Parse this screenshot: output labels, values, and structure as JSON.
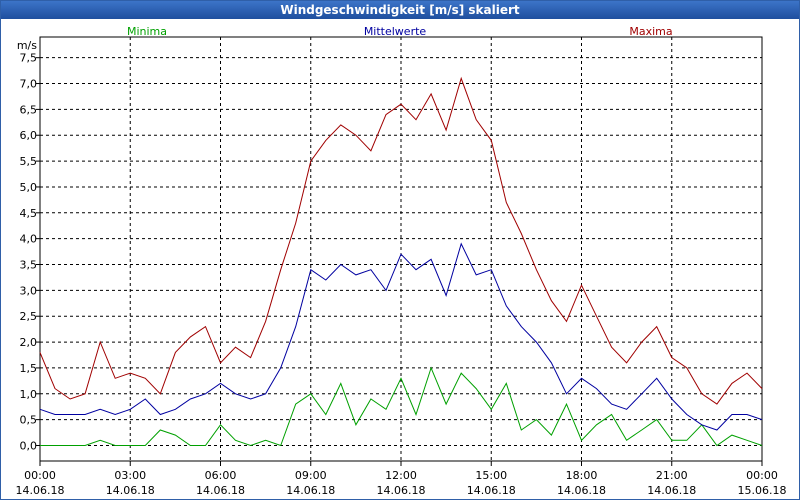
{
  "window": {
    "title": "Windgeschwindigkeit [m/s] skaliert"
  },
  "chart_data": {
    "type": "line",
    "title": "Windgeschwindigkeit [m/s] skaliert",
    "ylabel": "m/s",
    "xlabel": "",
    "ylim": [
      -0.3,
      7.9
    ],
    "xlim": [
      0,
      24
    ],
    "grid": true,
    "legend_position": "top",
    "y_ticks": [
      "0,0",
      "0,5",
      "1,0",
      "1,5",
      "2,0",
      "2,5",
      "3,0",
      "3,5",
      "4,0",
      "4,5",
      "5,0",
      "5,5",
      "6,0",
      "6,5",
      "7,0",
      "7,5"
    ],
    "x_ticks": [
      {
        "time": "00:00",
        "date": "14.06.18"
      },
      {
        "time": "03:00",
        "date": "14.06.18"
      },
      {
        "time": "06:00",
        "date": "14.06.18"
      },
      {
        "time": "09:00",
        "date": "14.06.18"
      },
      {
        "time": "12:00",
        "date": "14.06.18"
      },
      {
        "time": "15:00",
        "date": "14.06.18"
      },
      {
        "time": "18:00",
        "date": "14.06.18"
      },
      {
        "time": "21:00",
        "date": "14.06.18"
      },
      {
        "time": "00:00",
        "date": "15.06.18"
      }
    ],
    "series": [
      {
        "name": "Minima",
        "color": "#00a000",
        "x": [
          0,
          0.5,
          1,
          1.5,
          2,
          2.5,
          3,
          3.5,
          4,
          4.5,
          5,
          5.5,
          6,
          6.5,
          7,
          7.5,
          8,
          8.5,
          9,
          9.5,
          10,
          10.5,
          11,
          11.5,
          12,
          12.5,
          13,
          13.5,
          14,
          14.5,
          15,
          15.5,
          16,
          16.5,
          17,
          17.5,
          18,
          18.5,
          19,
          19.5,
          20,
          20.5,
          21,
          21.5,
          22,
          22.5,
          23,
          23.5,
          24
        ],
        "values": [
          0,
          0,
          0,
          0,
          0.1,
          0,
          0,
          0,
          0.3,
          0.2,
          0,
          0,
          0.4,
          0.1,
          0,
          0.1,
          0,
          0.8,
          1.0,
          0.6,
          1.2,
          0.4,
          0.9,
          0.7,
          1.3,
          0.6,
          1.5,
          0.8,
          1.4,
          1.1,
          0.7,
          1.2,
          0.3,
          0.5,
          0.2,
          0.8,
          0.1,
          0.4,
          0.6,
          0.1,
          0.3,
          0.5,
          0.1,
          0.1,
          0.4,
          0,
          0.2,
          0.1,
          0
        ]
      },
      {
        "name": "Mittelwerte",
        "color": "#0000a0",
        "x": [
          0,
          0.5,
          1,
          1.5,
          2,
          2.5,
          3,
          3.5,
          4,
          4.5,
          5,
          5.5,
          6,
          6.5,
          7,
          7.5,
          8,
          8.5,
          9,
          9.5,
          10,
          10.5,
          11,
          11.5,
          12,
          12.5,
          13,
          13.5,
          14,
          14.5,
          15,
          15.5,
          16,
          16.5,
          17,
          17.5,
          18,
          18.5,
          19,
          19.5,
          20,
          20.5,
          21,
          21.5,
          22,
          22.5,
          23,
          23.5,
          24
        ],
        "values": [
          0.7,
          0.6,
          0.6,
          0.6,
          0.7,
          0.6,
          0.7,
          0.9,
          0.6,
          0.7,
          0.9,
          1.0,
          1.2,
          1.0,
          0.9,
          1.0,
          1.5,
          2.3,
          3.4,
          3.2,
          3.5,
          3.3,
          3.4,
          3.0,
          3.7,
          3.4,
          3.6,
          2.9,
          3.9,
          3.3,
          3.4,
          2.7,
          2.3,
          2.0,
          1.6,
          1.0,
          1.3,
          1.1,
          0.8,
          0.7,
          1.0,
          1.3,
          0.9,
          0.6,
          0.4,
          0.3,
          0.6,
          0.6,
          0.5
        ]
      },
      {
        "name": "Maxima",
        "color": "#a00000",
        "x": [
          0,
          0.5,
          1,
          1.5,
          2,
          2.5,
          3,
          3.5,
          4,
          4.5,
          5,
          5.5,
          6,
          6.5,
          7,
          7.5,
          8,
          8.5,
          9,
          9.5,
          10,
          10.5,
          11,
          11.5,
          12,
          12.5,
          13,
          13.5,
          14,
          14.5,
          15,
          15.5,
          16,
          16.5,
          17,
          17.5,
          18,
          18.5,
          19,
          19.5,
          20,
          20.5,
          21,
          21.5,
          22,
          22.5,
          23,
          23.5,
          24
        ],
        "values": [
          1.8,
          1.1,
          0.9,
          1.0,
          2.0,
          1.3,
          1.4,
          1.3,
          1.0,
          1.8,
          2.1,
          2.3,
          1.6,
          1.9,
          1.7,
          2.4,
          3.4,
          4.3,
          5.5,
          5.9,
          6.2,
          6.0,
          5.7,
          6.4,
          6.6,
          6.3,
          6.8,
          6.1,
          7.1,
          6.3,
          5.9,
          4.7,
          4.1,
          3.4,
          2.8,
          2.4,
          3.1,
          2.5,
          1.9,
          1.6,
          2.0,
          2.3,
          1.7,
          1.5,
          1.0,
          0.8,
          1.2,
          1.4,
          1.1
        ]
      }
    ]
  }
}
